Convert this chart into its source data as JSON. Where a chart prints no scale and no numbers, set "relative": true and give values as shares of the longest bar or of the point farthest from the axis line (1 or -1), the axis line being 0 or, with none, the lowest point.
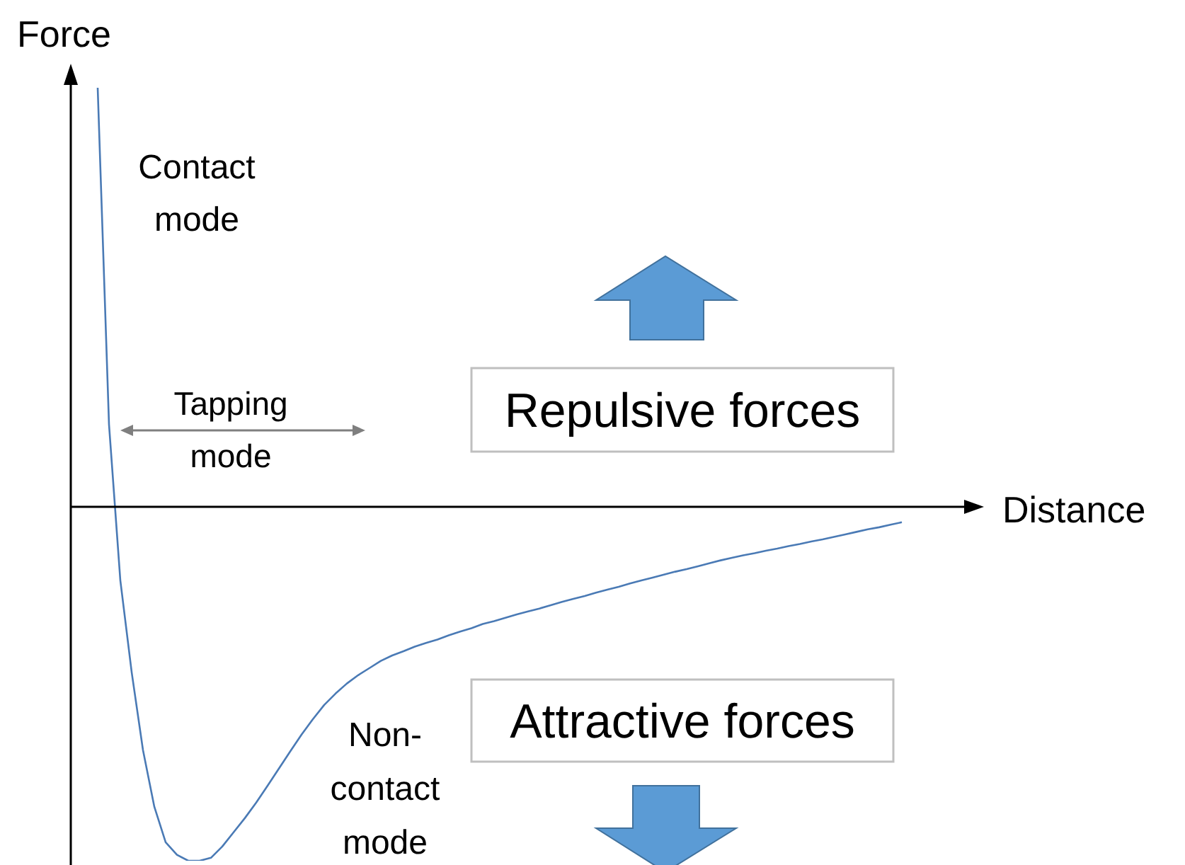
{
  "chart_data": {
    "type": "line",
    "relative": true,
    "xlabel": "Distance",
    "ylabel": "Force",
    "legend": false,
    "grid": false,
    "marker": "none",
    "line_style": "solid",
    "categories": [
      null,
      null,
      null,
      null,
      null,
      null,
      null,
      null,
      null,
      null,
      null,
      null,
      null,
      null,
      null,
      null,
      null,
      null,
      null,
      null,
      null,
      null,
      null,
      null,
      null,
      null,
      null,
      null,
      null,
      null,
      null,
      null,
      null,
      null,
      null,
      null,
      null,
      null,
      null,
      null,
      null,
      null,
      null,
      null,
      null,
      null,
      null,
      null,
      null,
      null,
      null,
      null,
      null,
      null,
      null,
      null,
      null,
      null,
      null,
      null,
      null,
      null,
      null,
      null,
      null,
      null,
      null,
      null,
      null,
      null,
      null,
      null
    ],
    "series": [
      {
        "color": "#4a7ab5",
        "values": [
          1.0,
          0.196,
          -0.176,
          -0.395,
          -0.581,
          -0.716,
          -0.801,
          -0.831,
          -0.845,
          -0.845,
          -0.838,
          -0.811,
          -0.777,
          -0.743,
          -0.706,
          -0.666,
          -0.625,
          -0.584,
          -0.544,
          -0.507,
          -0.473,
          -0.446,
          -0.422,
          -0.402,
          -0.385,
          -0.368,
          -0.355,
          -0.345,
          -0.334,
          -0.325,
          -0.317,
          -0.307,
          -0.298,
          -0.29,
          -0.28,
          -0.273,
          -0.265,
          -0.257,
          -0.25,
          -0.243,
          -0.235,
          -0.227,
          -0.22,
          -0.213,
          -0.205,
          -0.198,
          -0.191,
          -0.183,
          -0.176,
          -0.169,
          -0.162,
          -0.155,
          -0.149,
          -0.142,
          -0.135,
          -0.128,
          -0.122,
          -0.116,
          -0.111,
          -0.105,
          -0.1,
          -0.094,
          -0.089,
          -0.083,
          -0.078,
          -0.072,
          -0.066,
          -0.06,
          -0.054,
          -0.049,
          -0.043,
          -0.037
        ]
      }
    ],
    "annotations": [
      "Contact mode",
      "Tapping mode",
      "Repulsive forces",
      "Attractive forces",
      "Non-contact mode"
    ]
  }
}
